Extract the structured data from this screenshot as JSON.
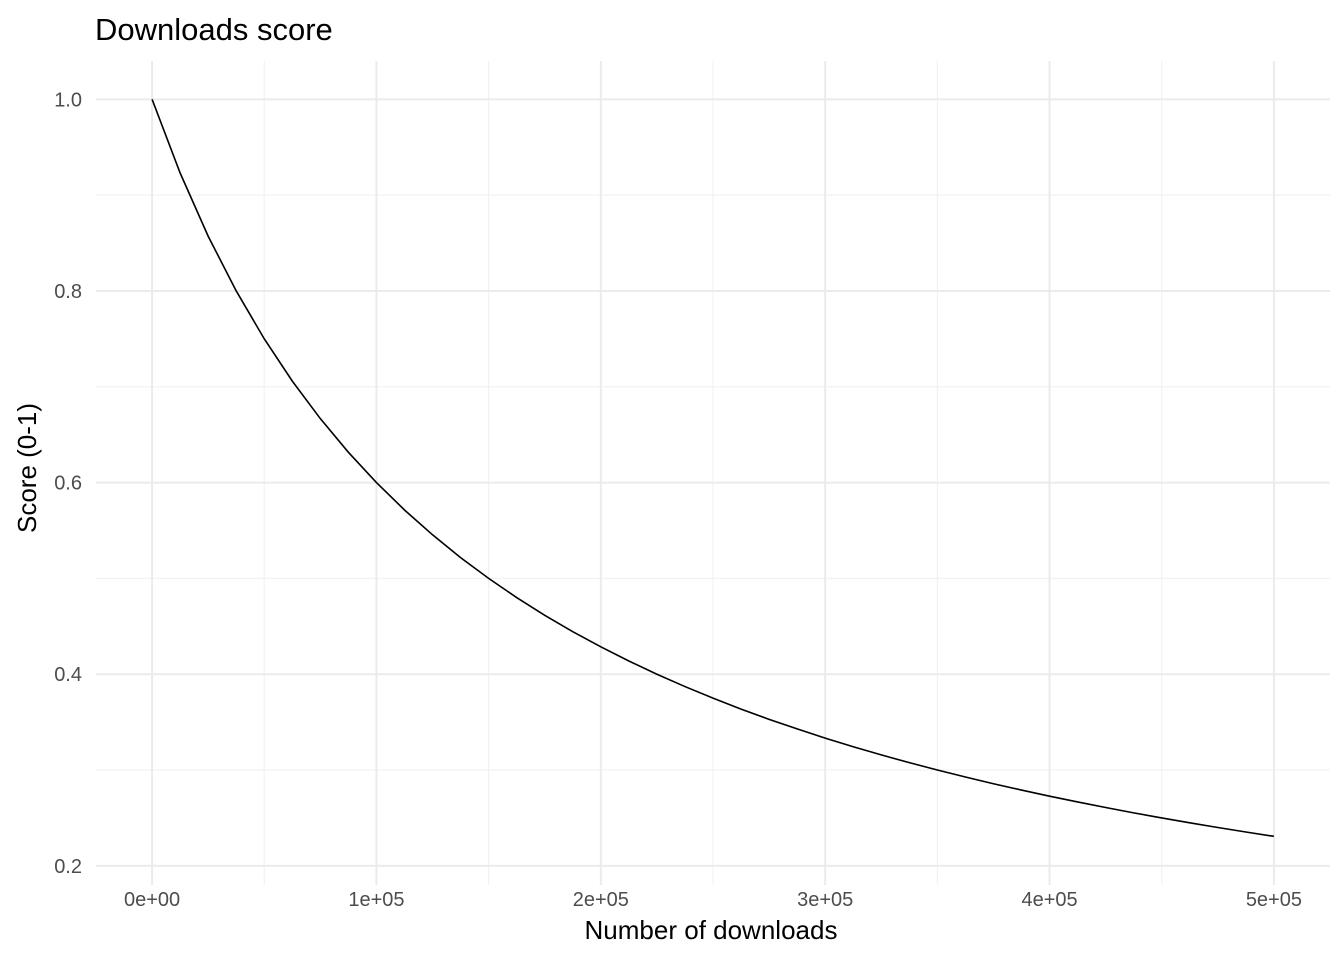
{
  "chart_data": {
    "type": "line",
    "title": "Downloads score",
    "xlabel": "Number of downloads",
    "ylabel": "Score (0-1)",
    "xlim": [
      -25000,
      525000
    ],
    "ylim": [
      0.18,
      1.04
    ],
    "x_ticks": [
      0,
      100000,
      200000,
      300000,
      400000,
      500000
    ],
    "x_tick_labels": [
      "0e+00",
      "1e+05",
      "2e+05",
      "3e+05",
      "4e+05",
      "5e+05"
    ],
    "x_minor_ticks": [
      50000,
      150000,
      250000,
      350000,
      450000
    ],
    "y_ticks": [
      0.2,
      0.4,
      0.6,
      0.8,
      1.0
    ],
    "y_tick_labels": [
      "0.2",
      "0.4",
      "0.6",
      "0.8",
      "1.0"
    ],
    "y_minor_ticks": [
      0.3,
      0.5,
      0.7,
      0.9
    ],
    "grid": true,
    "line_color": "#000000",
    "series": [
      {
        "x": [
          0,
          12500,
          25000,
          37500,
          50000,
          62500,
          75000,
          87500,
          100000,
          112500,
          125000,
          137500,
          150000,
          162500,
          175000,
          187500,
          200000,
          212500,
          225000,
          237500,
          250000,
          262500,
          275000,
          287500,
          300000,
          312500,
          325000,
          337500,
          350000,
          362500,
          375000,
          387500,
          400000,
          412500,
          425000,
          437500,
          450000,
          462500,
          475000,
          487500,
          500000
        ],
        "y": [
          1.0,
          0.9231,
          0.8571,
          0.8,
          0.75,
          0.7059,
          0.6667,
          0.6316,
          0.6,
          0.5714,
          0.5455,
          0.5217,
          0.5,
          0.48,
          0.4615,
          0.4444,
          0.4286,
          0.4138,
          0.4,
          0.3871,
          0.375,
          0.3636,
          0.3529,
          0.3429,
          0.3333,
          0.3243,
          0.3158,
          0.3077,
          0.3,
          0.2927,
          0.2857,
          0.2791,
          0.2727,
          0.2667,
          0.2609,
          0.2553,
          0.25,
          0.2449,
          0.24,
          0.2353,
          0.2308
        ]
      }
    ]
  }
}
